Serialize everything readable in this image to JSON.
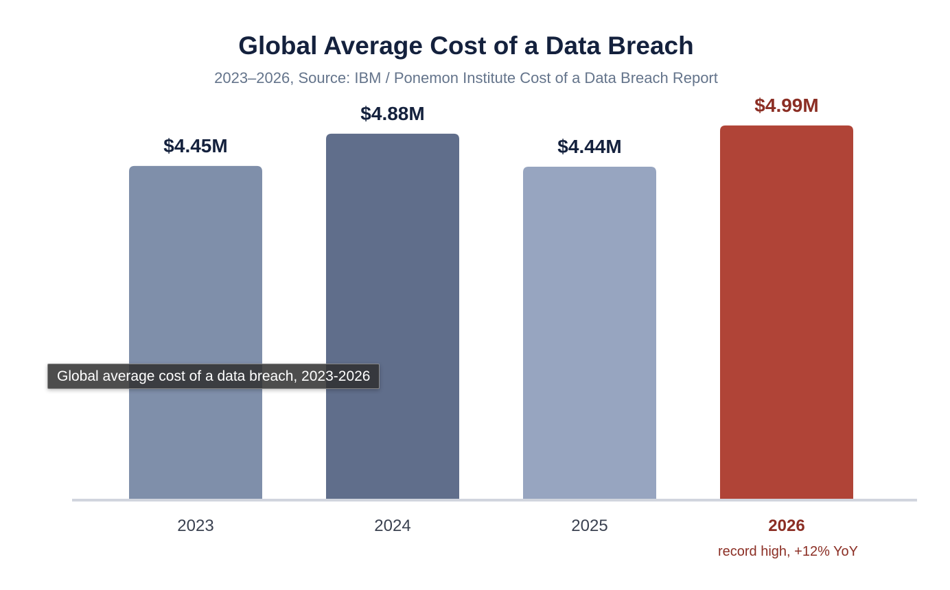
{
  "chart_data": {
    "type": "bar",
    "title": "Global Average Cost of a Data Breach",
    "subtitle": "2023–2026, Source: IBM / Ponemon Institute Cost of a Data Breach Report",
    "categories": [
      "2023",
      "2024",
      "2025",
      "2026"
    ],
    "values": [
      4.45,
      4.88,
      4.44,
      4.99
    ],
    "value_labels": [
      "$4.45M",
      "$4.88M",
      "$4.44M",
      "$4.99M"
    ],
    "unit": "USD millions",
    "ylim": [
      0,
      6.28
    ],
    "grid": false,
    "bar_colors": [
      "#7f8faa",
      "#606e8b",
      "#97a5c0",
      "#b04437"
    ],
    "highlight": {
      "index": 3,
      "color": "#8b2e24",
      "annotation": "record high, +12% YoY"
    },
    "axis_color": "#d1d5de",
    "label_color": "#14213d",
    "tick_color": "#3a4150"
  },
  "tooltip": {
    "text": "Global average cost of a data breach, 2023-2026"
  }
}
